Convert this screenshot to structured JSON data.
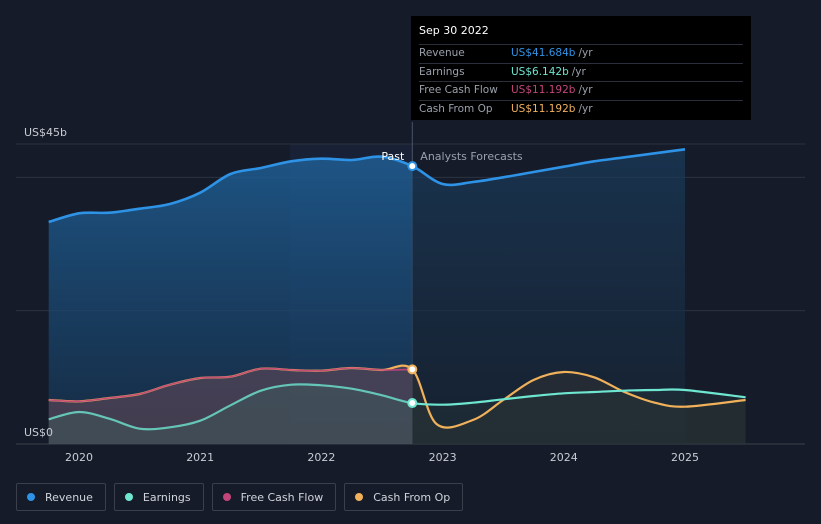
{
  "chart_data": {
    "type": "area",
    "x_ticks": [
      "2020",
      "2021",
      "2022",
      "2023",
      "2024",
      "2025"
    ],
    "y_labels": [
      "US$45b",
      "US$0"
    ],
    "ylim": [
      0,
      45
    ],
    "past_label": "Past",
    "forecast_label": "Analysts Forecasts",
    "past_end": 2022.75,
    "series": [
      {
        "name": "Revenue",
        "color": "#2e93e6",
        "x": [
          2019.75,
          2020.0,
          2020.25,
          2020.5,
          2020.75,
          2021.0,
          2021.25,
          2021.5,
          2021.75,
          2022.0,
          2022.25,
          2022.5,
          2022.75,
          2023.0,
          2023.25,
          2023.5,
          2023.75,
          2024.0,
          2024.25,
          2024.5,
          2024.75,
          2025.0
        ],
        "values": [
          33.3,
          34.6,
          34.7,
          35.3,
          36.0,
          37.7,
          40.5,
          41.4,
          42.4,
          42.8,
          42.6,
          43.1,
          41.684,
          39.0,
          39.3,
          40.0,
          40.8,
          41.6,
          42.4,
          43.0,
          43.6,
          44.2
        ]
      },
      {
        "name": "Earnings",
        "color": "#6ee6d0",
        "x": [
          2019.75,
          2020.0,
          2020.25,
          2020.5,
          2020.75,
          2021.0,
          2021.25,
          2021.5,
          2021.75,
          2022.0,
          2022.25,
          2022.5,
          2022.75,
          2023.0,
          2023.25,
          2023.5,
          2023.75,
          2024.0,
          2024.25,
          2024.5,
          2024.75,
          2025.0,
          2025.5
        ],
        "values": [
          3.7,
          4.8,
          3.8,
          2.3,
          2.5,
          3.5,
          5.8,
          8.0,
          8.9,
          8.8,
          8.3,
          7.3,
          6.142,
          5.9,
          6.2,
          6.7,
          7.2,
          7.6,
          7.8,
          8.0,
          8.1,
          8.1,
          7.0
        ]
      },
      {
        "name": "Free Cash Flow",
        "color": "#c2457a",
        "x": [
          2019.75,
          2020.0,
          2020.25,
          2020.5,
          2020.75,
          2021.0,
          2021.25,
          2021.5,
          2021.75,
          2022.0,
          2022.25,
          2022.5,
          2022.75
        ],
        "values": [
          6.6,
          6.4,
          6.9,
          7.5,
          8.9,
          9.9,
          10.1,
          11.3,
          11.1,
          11.0,
          11.4,
          11.1,
          11.192
        ]
      },
      {
        "name": "Cash From Op",
        "color": "#f0b15a",
        "x": [
          2019.75,
          2020.0,
          2020.25,
          2020.5,
          2020.75,
          2021.0,
          2021.25,
          2021.5,
          2021.75,
          2022.0,
          2022.25,
          2022.5,
          2022.75,
          2022.95,
          2023.25,
          2023.5,
          2023.75,
          2024.0,
          2024.25,
          2024.5,
          2024.75,
          2025.0,
          2025.5
        ],
        "values": [
          6.6,
          6.4,
          6.9,
          7.5,
          8.9,
          9.9,
          10.1,
          11.3,
          11.1,
          11.0,
          11.4,
          11.1,
          11.192,
          3.0,
          3.6,
          6.6,
          9.6,
          10.8,
          10.0,
          7.8,
          6.2,
          5.6,
          6.6
        ]
      }
    ]
  },
  "tooltip": {
    "date": "Sep 30 2022",
    "rows": [
      {
        "label": "Revenue",
        "value": "US$41.684b",
        "unit": "/yr",
        "color": "#2e93e6"
      },
      {
        "label": "Earnings",
        "value": "US$6.142b",
        "unit": "/yr",
        "color": "#6ee6d0"
      },
      {
        "label": "Free Cash Flow",
        "value": "US$11.192b",
        "unit": "/yr",
        "color": "#c2457a"
      },
      {
        "label": "Cash From Op",
        "value": "US$11.192b",
        "unit": "/yr",
        "color": "#f0b15a"
      }
    ]
  },
  "legend": [
    {
      "label": "Revenue",
      "color": "#2e93e6"
    },
    {
      "label": "Earnings",
      "color": "#6ee6d0"
    },
    {
      "label": "Free Cash Flow",
      "color": "#c2457a"
    },
    {
      "label": "Cash From Op",
      "color": "#f0b15a"
    }
  ]
}
